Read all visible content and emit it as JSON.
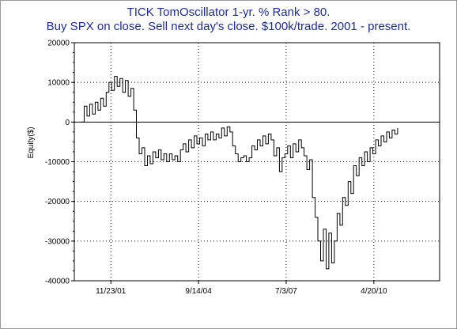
{
  "chart_data": {
    "type": "line",
    "title": "TICK TomOscillator 1-yr. % Rank > 80.",
    "subtitle": "Buy SPX on close. Sell next day's close. $100k/trade. 2001 - present.",
    "xlabel": "",
    "ylabel": "Equity($)",
    "ylim": [
      -40000,
      20000
    ],
    "y_ticks": [
      20000,
      10000,
      0,
      -10000,
      -20000,
      -30000,
      -40000
    ],
    "x_tick_labels": [
      "11/23/01",
      "9/14/04",
      "7/3/07",
      "4/20/10"
    ],
    "grid": true,
    "legend": "none",
    "colors": {
      "line": "#000000",
      "grid": "#000000",
      "title": "#1b2a9e",
      "zero_line": "#000000"
    },
    "series": [
      {
        "values": [
          0,
          4000,
          1500,
          4500,
          2000,
          5000,
          3000,
          6000,
          4000,
          7500,
          10000,
          8000,
          11500,
          9000,
          11000,
          7500,
          10500,
          6500,
          8500,
          3000,
          -4000,
          -8000,
          -6500,
          -11000,
          -8500,
          -10500,
          -7500,
          -9000,
          -7000,
          -9500,
          -8000,
          -10000,
          -8000,
          -9500,
          -8500,
          -10000,
          -7000,
          -5500,
          -7500,
          -4500,
          -6500,
          -3500,
          -5500,
          -4000,
          -6000,
          -3000,
          -4500,
          -2500,
          -4500,
          -3000,
          -4000,
          -1500,
          -3500,
          -1200,
          -2500,
          -6000,
          -8000,
          -10000,
          -9000,
          -8500,
          -10000,
          -9000,
          -6000,
          -7000,
          -4500,
          -6000,
          -3500,
          -5500,
          -3000,
          -4500,
          -8500,
          -6500,
          -12500,
          -9000,
          -8000,
          -6000,
          -9000,
          -5500,
          -7500,
          -4500,
          -6500,
          -8500,
          -12000,
          -9500,
          -19000,
          -24000,
          -30000,
          -35000,
          -27000,
          -37000,
          -28000,
          -35500,
          -30000,
          -23000,
          -26000,
          -19000,
          -21000,
          -15000,
          -18000,
          -11000,
          -13500,
          -9000,
          -11000,
          -7500,
          -10000,
          -6500,
          -8000,
          -4500,
          -6000,
          -3500,
          -5000,
          -2500,
          -4000,
          -2000,
          -3000,
          -1500
        ]
      }
    ]
  }
}
